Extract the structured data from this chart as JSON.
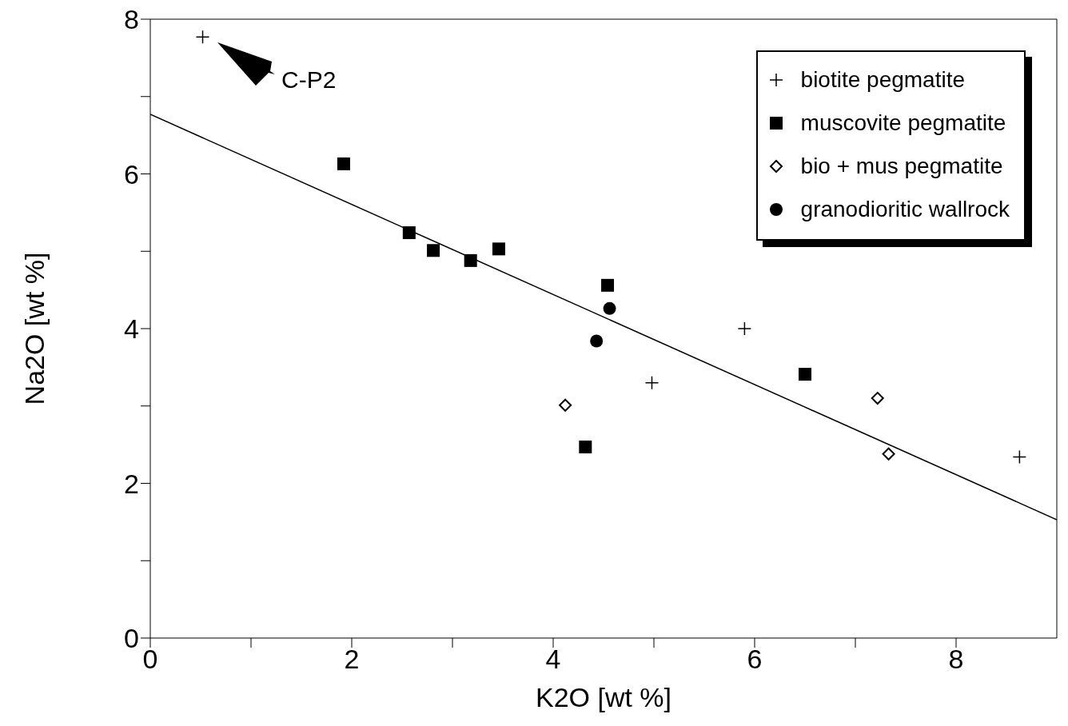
{
  "chart_data": {
    "type": "scatter",
    "xlabel": "K2O [wt %]",
    "ylabel": "Na2O [wt %]",
    "xlim": [
      0,
      9
    ],
    "ylim": [
      0,
      8
    ],
    "xticks": [
      0,
      {
        "value": 1,
        "label": null
      },
      2,
      {
        "value": 3,
        "label": null
      },
      4,
      {
        "value": 5,
        "label": null
      },
      6,
      {
        "value": 7,
        "label": null
      },
      8
    ],
    "yticks": [
      0,
      {
        "value": 1,
        "label": null
      },
      2,
      {
        "value": 3,
        "label": null
      },
      4,
      {
        "value": 5,
        "label": null
      },
      6,
      {
        "value": 7,
        "label": null
      },
      8
    ],
    "grid": false,
    "legend": "top right",
    "annotations": [
      "C-P2"
    ],
    "series": [
      {
        "name": "biotite pegmatite",
        "color": "#000000",
        "marker": "cross",
        "x": [
          0.52,
          5.9,
          4.98,
          8.63
        ],
        "values": [
          7.77,
          4.0,
          3.3,
          2.34
        ]
      },
      {
        "name": "muscovite pegmatite",
        "color": "#000000",
        "marker": "square",
        "x": [
          1.92,
          2.57,
          2.81,
          3.18,
          3.46,
          4.54,
          4.32,
          6.5
        ],
        "values": [
          6.13,
          5.24,
          5.01,
          4.88,
          5.03,
          4.56,
          2.47,
          3.41
        ]
      },
      {
        "name": "bio + mus pegmatite",
        "color": "#000000",
        "marker": "diamond",
        "x": [
          4.12,
          7.22,
          7.33
        ],
        "values": [
          3.01,
          3.1,
          2.38
        ]
      },
      {
        "name": "granodioritic wallrock",
        "color": "#000000",
        "marker": "circle",
        "x": [
          4.56,
          4.43
        ],
        "values": [
          4.26,
          3.84
        ]
      },
      {
        "type": "line",
        "color": "#000000",
        "marker": "none",
        "x": [
          0,
          9
        ],
        "values": [
          6.77,
          1.53
        ]
      }
    ]
  }
}
